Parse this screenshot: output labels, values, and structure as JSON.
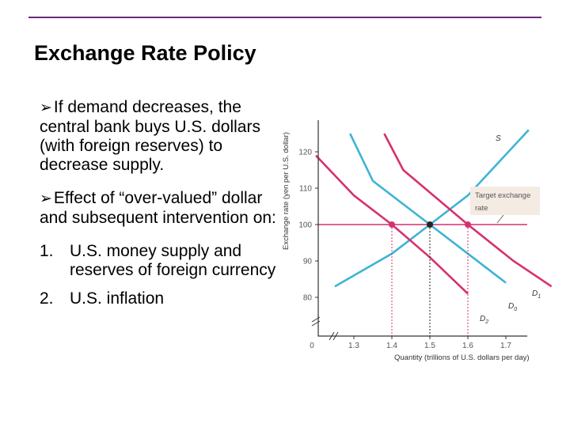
{
  "slide": {
    "title": "Exchange Rate Policy",
    "bullets": [
      "If demand decreases, the central bank buys U.S. dollars (with foreign reserves) to decrease supply.",
      "Effect of “over-valued” dollar and subsequent intervention on:"
    ],
    "numbered": [
      {
        "num": "1.",
        "text": "U.S. money supply and reserves of foreign currency"
      },
      {
        "num": "2.",
        "text": "U.S. inflation"
      }
    ],
    "accent_color": "#6b2a7a"
  },
  "chart_data": {
    "type": "line",
    "xlabel": "Quantity (trillions of U.S. dollars per day)",
    "ylabel": "Exchange rate (yen per U.S. dollar)",
    "x_ticks": [
      "0",
      "1.3",
      "1.4",
      "1.5",
      "1.6",
      "1.7"
    ],
    "y_ticks": [
      "80",
      "90",
      "100",
      "110",
      "120"
    ],
    "xlim": [
      1.2,
      1.8
    ],
    "ylim": [
      70,
      130
    ],
    "target_rate": 100,
    "target_label": [
      "Target exchange",
      "rate"
    ],
    "series": [
      {
        "name": "S",
        "color": "#3fb3d6",
        "points": [
          [
            1.76,
            126
          ],
          [
            1.6,
            108
          ],
          [
            1.5,
            100
          ],
          [
            1.4,
            92
          ],
          [
            1.25,
            83
          ]
        ]
      },
      {
        "name": "D1",
        "color": "#d6306f",
        "points": [
          [
            1.38,
            125
          ],
          [
            1.43,
            115
          ],
          [
            1.6,
            100
          ],
          [
            1.72,
            90
          ],
          [
            1.82,
            83
          ]
        ]
      },
      {
        "name": "D0",
        "color": "#3fb3d6",
        "points": [
          [
            1.29,
            125
          ],
          [
            1.35,
            112
          ],
          [
            1.5,
            100
          ],
          [
            1.6,
            92
          ],
          [
            1.7,
            84
          ]
        ]
      },
      {
        "name": "D2",
        "color": "#d6306f",
        "points": [
          [
            1.2,
            119
          ],
          [
            1.3,
            108
          ],
          [
            1.4,
            100
          ],
          [
            1.5,
            91
          ],
          [
            1.6,
            81
          ]
        ]
      }
    ],
    "equilibria": [
      {
        "x": 1.4,
        "y": 100,
        "color": "#d6306f"
      },
      {
        "x": 1.5,
        "y": 100,
        "color": "#222222"
      },
      {
        "x": 1.6,
        "y": 100,
        "color": "#d6306f"
      }
    ],
    "grid": false
  }
}
